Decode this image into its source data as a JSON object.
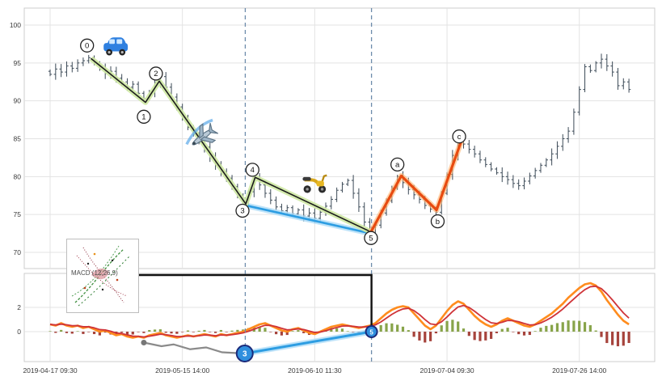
{
  "indicator_label": "MACD (12,26,9)",
  "colors": {
    "candle": "#3c4a57",
    "grid": "#e3e3e3",
    "frame": "#cccccc",
    "tick_text": "#3a3a3a",
    "wave_core": "#1c1c1c",
    "wave_glow": "#cfe9a4",
    "correction_core": "#e84b10",
    "correction_glow": "#ffb470",
    "blue_core": "#2d9de2",
    "blue_glow": "#aedcf7",
    "macd_line": "#ff8c1e",
    "signal_line": "#cf3338",
    "hist_up": "#7b9a36",
    "hist_down": "#9c2f27",
    "vline": "#6d8cab",
    "connector": "#111111",
    "marker_blue_fill": "#2f8fde",
    "marker_blue_ring": "#1b2a7a",
    "gray_line": "#8a8a8a"
  },
  "x_axis": {
    "tick_labels": [
      "2019-04-17 09:30",
      "2019-05-15 14:00",
      "2019-06-10 11:30",
      "2019-07-04 09:30",
      "2019-07-26 14:00"
    ],
    "tick_indices": [
      0,
      24,
      48,
      72,
      96
    ]
  },
  "chart_data": [
    {
      "type": "candlestick",
      "panel": "price",
      "title": "",
      "ylim": [
        69,
        101.5
      ],
      "yticks": [
        100,
        95,
        90,
        85,
        80,
        75,
        70
      ],
      "closes": [
        93.5,
        94.2,
        93.8,
        94.6,
        94.3,
        95.0,
        95.3,
        95.7,
        95.0,
        94.2,
        93.6,
        93.9,
        93.0,
        92.5,
        91.8,
        92.2,
        91.0,
        90.3,
        91.2,
        92.4,
        93.2,
        91.8,
        90.5,
        89.2,
        87.8,
        86.5,
        85.6,
        84.5,
        83.9,
        82.6,
        81.5,
        80.6,
        79.8,
        78.7,
        77.5,
        76.3,
        78.0,
        79.8,
        78.9,
        77.8,
        76.9,
        76.0,
        75.5,
        75.9,
        75.1,
        75.6,
        74.8,
        75.2,
        74.5,
        75.3,
        76.1,
        77.0,
        78.2,
        79.0,
        79.5,
        77.8,
        76.0,
        74.0,
        72.3,
        73.6,
        75.2,
        76.8,
        78.5,
        80.0,
        79.2,
        78.3,
        77.6,
        77.0,
        76.2,
        75.7,
        75.3,
        77.8,
        80.3,
        82.8,
        85.0,
        84.3,
        83.6,
        83.0,
        82.2,
        81.6,
        81.0,
        80.5,
        80.0,
        79.6,
        79.1,
        78.8,
        79.4,
        80.1,
        80.8,
        81.5,
        82.2,
        83.0,
        84.0,
        85.0,
        86.0,
        88.5,
        91.5,
        94.5,
        94.0,
        95.0,
        95.5,
        94.6,
        93.8,
        92.0,
        92.5,
        91.5
      ]
    },
    {
      "type": "line",
      "panel": "macd",
      "ylim": [
        -2.5,
        4.8
      ],
      "yticks": [
        2,
        0
      ],
      "series": [
        {
          "name": "MACD",
          "values": [
            0.6,
            0.5,
            0.7,
            0.5,
            0.4,
            0.5,
            0.3,
            0.4,
            0.2,
            0.0,
            0.1,
            -0.1,
            -0.3,
            -0.2,
            -0.4,
            -0.5,
            -0.4,
            -0.5,
            -0.3,
            -0.2,
            -0.1,
            -0.3,
            -0.4,
            -0.5,
            -0.4,
            -0.3,
            -0.4,
            -0.3,
            -0.2,
            -0.3,
            -0.4,
            -0.2,
            -0.3,
            -0.2,
            -0.1,
            0.0,
            0.2,
            0.4,
            0.6,
            0.7,
            0.5,
            0.3,
            0.1,
            0.0,
            0.2,
            0.3,
            0.1,
            -0.1,
            -0.2,
            0.0,
            0.2,
            0.4,
            0.5,
            0.6,
            0.5,
            0.4,
            0.3,
            0.4,
            0.5,
            0.7,
            1.1,
            1.5,
            1.8,
            2.0,
            2.1,
            2.0,
            1.5,
            1.0,
            0.5,
            0.2,
            0.5,
            1.1,
            1.7,
            2.2,
            2.5,
            2.3,
            1.8,
            1.3,
            0.9,
            0.6,
            0.4,
            0.6,
            0.9,
            1.1,
            0.9,
            0.7,
            0.5,
            0.4,
            0.6,
            0.9,
            1.2,
            1.5,
            1.9,
            2.3,
            2.8,
            3.2,
            3.6,
            3.9,
            4.0,
            3.8,
            3.3,
            2.6,
            2.0,
            1.4,
            0.9,
            0.6
          ]
        },
        {
          "name": "Signal",
          "derived": "ema(MACD,0.45)"
        }
      ],
      "histogram": "MACD-Signal"
    }
  ],
  "annotations": {
    "impulse_wave": {
      "points": [
        [
          7.4,
          95.6
        ],
        [
          17.3,
          89.8
        ],
        [
          19.8,
          92.6
        ],
        [
          35.5,
          76.4
        ],
        [
          37.2,
          79.9
        ],
        [
          58.2,
          72.7
        ]
      ],
      "labels": [
        {
          "text": "0",
          "i": 6.7,
          "p": 97.3
        },
        {
          "text": "1",
          "i": 17.0,
          "p": 87.9
        },
        {
          "text": "2",
          "i": 19.2,
          "p": 93.6
        },
        {
          "text": "3",
          "i": 34.9,
          "p": 75.5
        },
        {
          "text": "4",
          "i": 36.7,
          "p": 80.9
        },
        {
          "text": "5",
          "i": 58.2,
          "p": 71.9
        }
      ]
    },
    "correction_wave": {
      "points": [
        [
          58.2,
          72.7
        ],
        [
          63.7,
          80.1
        ],
        [
          70.1,
          75.6
        ],
        [
          74.7,
          84.9
        ]
      ],
      "labels": [
        {
          "text": "a",
          "i": 63.0,
          "p": 81.6
        },
        {
          "text": "b",
          "i": 70.3,
          "p": 74.1
        },
        {
          "text": "c",
          "i": 74.2,
          "p": 85.3
        }
      ]
    },
    "price_trend_line": [
      [
        35.5,
        76.2
      ],
      [
        58.2,
        72.5
      ]
    ],
    "macd_trend_line": [
      [
        35.3,
        -1.8
      ],
      [
        58.3,
        0.0
      ]
    ],
    "macd_gray_path": [
      [
        17.0,
        -0.9
      ],
      [
        20.2,
        -1.2
      ],
      [
        22.4,
        -1.05
      ],
      [
        25.4,
        -1.45
      ],
      [
        28.3,
        -1.3
      ],
      [
        31.2,
        -1.7
      ],
      [
        35.3,
        -1.8
      ]
    ],
    "macd_markers": [
      {
        "text": "3",
        "i": 35.3,
        "v": -1.8,
        "r": 10
      },
      {
        "text": "5",
        "i": 58.3,
        "v": 0.0,
        "r": 7
      }
    ],
    "vlines": [
      35.4,
      58.3
    ],
    "icons": [
      {
        "name": "car-icon",
        "i": 11.9,
        "p": 96.9
      },
      {
        "name": "airplane-icon",
        "i": 27.6,
        "p": 85.2,
        "rotate": 143
      },
      {
        "name": "scooter-icon",
        "i": 48.0,
        "p": 79.2
      }
    ]
  }
}
